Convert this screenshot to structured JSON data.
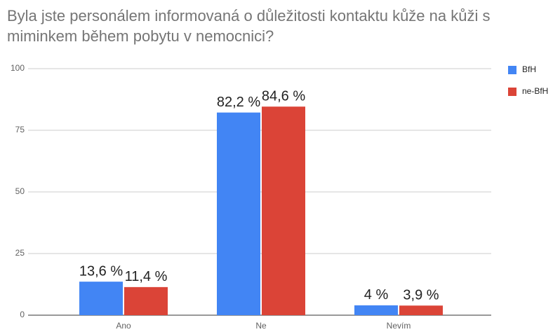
{
  "chart_data": {
    "type": "bar",
    "title": "Byla jste personálem informovaná o důležitosti kontaktu kůže na kůži s miminkem během pobytu v nemocnici?",
    "categories": [
      "Ano",
      "Ne",
      "Nevím"
    ],
    "series": [
      {
        "name": "BfH",
        "color": "#4285f4",
        "values": [
          13.6,
          82.2,
          4
        ],
        "value_labels": [
          "13,6 %",
          "82,2 %",
          "4 %"
        ]
      },
      {
        "name": "ne-BfH",
        "color": "#db4437",
        "values": [
          11.4,
          84.6,
          3.9
        ],
        "value_labels": [
          "11,4 %",
          "84,6 %",
          "3,9 %"
        ]
      }
    ],
    "ylim": [
      0,
      100
    ],
    "yticks": [
      0,
      25,
      50,
      75,
      100
    ],
    "grid": true,
    "legend": "right"
  }
}
